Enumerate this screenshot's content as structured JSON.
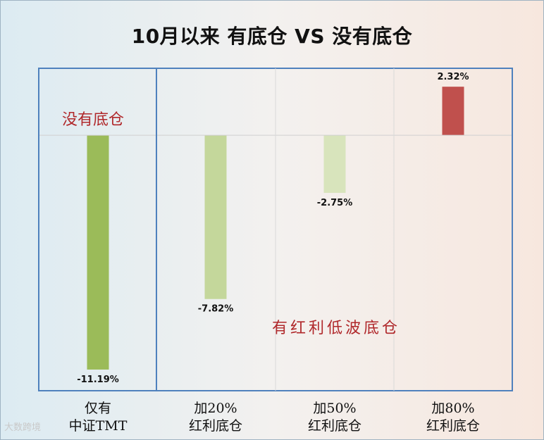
{
  "chart_data": {
    "type": "bar",
    "title": "10月以来 有底仓 VS 没有底仓",
    "categories": [
      [
        "仅有",
        "中证TMT"
      ],
      [
        "加20%",
        "红利底仓"
      ],
      [
        "加50%",
        "红利底仓"
      ],
      [
        "加80%",
        "红利底仓"
      ]
    ],
    "values": [
      -11.19,
      -7.82,
      -2.75,
      2.32
    ],
    "data_labels": [
      "-11.19%",
      "-7.82%",
      "-2.75%",
      "2.32%"
    ],
    "bar_colors": [
      "#9bbb59",
      "#c4d79b",
      "#d8e4bc",
      "#c0504d"
    ],
    "ylim": [
      -12.2,
      3.2
    ],
    "annotations": [
      "没有底仓",
      "有红利低波底仓"
    ],
    "grid": false,
    "legend": "none"
  },
  "watermark": "大数跨境"
}
